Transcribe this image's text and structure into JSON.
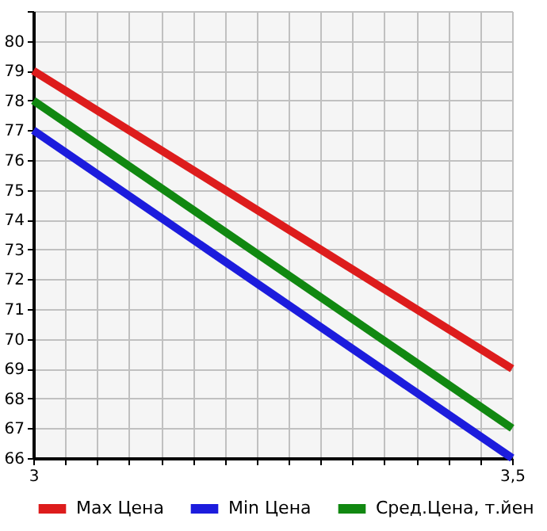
{
  "chart_data": {
    "type": "line",
    "x": [
      3,
      3.5
    ],
    "series": [
      {
        "name": "Max Цена",
        "color": "#dd1c1c",
        "values": [
          79,
          69
        ]
      },
      {
        "name": "Min Цена",
        "color": "#1c1cdd",
        "values": [
          77,
          66
        ]
      },
      {
        "name": "Сред.Цена, т.йен",
        "color": "#118811",
        "values": [
          78,
          67
        ]
      }
    ],
    "xlim": [
      3,
      3.5
    ],
    "xticks": [
      3,
      {
        "value": 3.0333,
        "label": null
      },
      {
        "value": 3.0667,
        "label": null
      },
      {
        "value": 3.1,
        "label": null
      },
      {
        "value": 3.1333,
        "label": null
      },
      {
        "value": 3.1667,
        "label": null
      },
      {
        "value": 3.2,
        "label": null
      },
      {
        "value": 3.2333,
        "label": null
      },
      {
        "value": 3.2667,
        "label": null
      },
      {
        "value": 3.3,
        "label": null
      },
      {
        "value": 3.3333,
        "label": null
      },
      {
        "value": 3.3667,
        "label": null
      },
      {
        "value": 3.4,
        "label": null
      },
      {
        "value": 3.4333,
        "label": null
      },
      {
        "value": 3.4667,
        "label": null
      },
      {
        "value": 3.5,
        "label": "3,5"
      }
    ],
    "ylim": [
      66,
      81
    ],
    "yticks": [
      66,
      67,
      68,
      69,
      70,
      71,
      72,
      73,
      74,
      75,
      76,
      77,
      78,
      79,
      80,
      {
        "value": 81,
        "label": null
      }
    ],
    "grid": true,
    "legend": "bottom",
    "marker": "none",
    "line_style": "solid"
  }
}
